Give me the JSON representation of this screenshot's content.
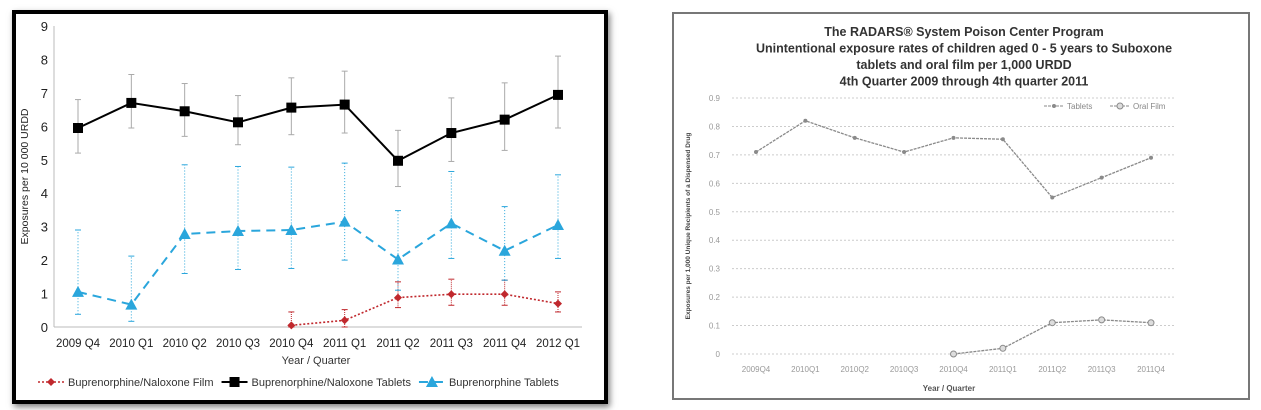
{
  "chart_data": [
    {
      "type": "line",
      "title": "",
      "xlabel": "Year / Quarter",
      "ylabel": "Exposures per 10 000 URDD",
      "ylim": [
        0,
        9
      ],
      "yticks": [
        "0",
        "1",
        "2",
        "3",
        "4",
        "5",
        "6",
        "7",
        "8",
        "9"
      ],
      "categories": [
        "2009 Q4",
        "2010 Q1",
        "2010 Q2",
        "2010 Q3",
        "2010 Q4",
        "2011 Q1",
        "2011 Q2",
        "2011 Q3",
        "2011 Q4",
        "2012 Q1"
      ],
      "legend_position": "bottom",
      "series": [
        {
          "name": "Buprenorphine/Naloxone Film",
          "color": "#c0282d",
          "values": [
            null,
            null,
            null,
            null,
            0.05,
            0.2,
            0.88,
            0.98,
            0.98,
            0.7
          ],
          "error_low": [
            null,
            null,
            null,
            null,
            0,
            0,
            0.58,
            0.65,
            0.65,
            0.45
          ],
          "error_high": [
            null,
            null,
            null,
            null,
            0.45,
            0.52,
            1.35,
            1.43,
            1.4,
            1.05
          ]
        },
        {
          "name": "Buprenorphine/Naloxone Tablets",
          "color": "#000000",
          "values": [
            5.95,
            6.7,
            6.45,
            6.12,
            6.56,
            6.65,
            4.97,
            5.8,
            6.2,
            6.94
          ],
          "error_low": [
            5.2,
            5.95,
            5.7,
            5.45,
            5.75,
            5.8,
            4.2,
            4.95,
            5.28,
            5.95
          ],
          "error_high": [
            6.8,
            7.55,
            7.28,
            6.92,
            7.45,
            7.65,
            5.88,
            6.85,
            7.3,
            8.1
          ]
        },
        {
          "name": "Buprenorphine Tablets",
          "color": "#2aa6dc",
          "values": [
            1.05,
            0.67,
            2.78,
            2.87,
            2.9,
            3.15,
            2.02,
            3.1,
            2.28,
            3.05
          ],
          "error_low": [
            0.38,
            0.17,
            1.6,
            1.72,
            1.75,
            2.0,
            1.1,
            2.05,
            1.4,
            2.05
          ],
          "error_high": [
            2.9,
            2.12,
            4.85,
            4.8,
            4.78,
            4.9,
            3.48,
            4.65,
            3.6,
            4.55
          ]
        }
      ]
    },
    {
      "type": "line",
      "title": [
        "The RADARS® System Poison Center Program",
        "Unintentional exposure rates of children aged 0 - 5 years to Suboxone",
        "tablets and oral film per 1,000 URDD",
        "4th Quarter 2009 through 4th quarter 2011"
      ],
      "xlabel": "Year / Quarter",
      "ylabel": "Exposures per 1,000 Unique Recipients of a Dispensed Drug",
      "ylim": [
        0,
        0.9
      ],
      "yticks": [
        "0",
        "0.1",
        "0.2",
        "0.3",
        "0.4",
        "0.5",
        "0.6",
        "0.7",
        "0.8",
        "0.9"
      ],
      "categories": [
        "2009Q4",
        "2010Q1",
        "2010Q2",
        "2010Q3",
        "2010Q4",
        "2011Q1",
        "2011Q2",
        "2011Q3",
        "2011Q4"
      ],
      "legend_position": "top-right",
      "grid": true,
      "series": [
        {
          "name": "Tablets",
          "color": "#8a8a8a",
          "values": [
            0.71,
            0.82,
            0.76,
            0.71,
            0.76,
            0.755,
            0.55,
            0.62,
            0.69
          ]
        },
        {
          "name": "Oral Film",
          "color": "#8a8a8a",
          "values": [
            null,
            null,
            null,
            null,
            0,
            0.02,
            0.11,
            0.12,
            0.11
          ]
        }
      ]
    }
  ]
}
